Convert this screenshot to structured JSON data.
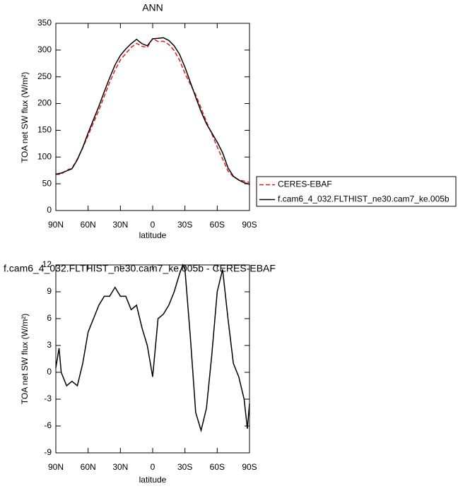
{
  "chart_data": [
    {
      "type": "line",
      "title": "ANN",
      "x_label": "latitude",
      "y_label": "TOA net SW flux (W/m²)",
      "x": [
        90,
        85,
        80,
        75,
        70,
        65,
        60,
        55,
        50,
        45,
        40,
        35,
        30,
        25,
        20,
        15,
        10,
        5,
        0,
        -5,
        -10,
        -15,
        -20,
        -25,
        -30,
        -35,
        -40,
        -45,
        -50,
        -55,
        -60,
        -65,
        -70,
        -75,
        -80,
        -85,
        -90
      ],
      "xlim": [
        90,
        -90
      ],
      "xticks": [
        {
          "value": 90,
          "label": "90N"
        },
        {
          "value": 60,
          "label": "60N"
        },
        {
          "value": 30,
          "label": "30N"
        },
        0,
        {
          "value": -30,
          "label": "30S"
        },
        {
          "value": -60,
          "label": "60S"
        },
        {
          "value": -90,
          "label": "90S"
        }
      ],
      "ylim": [
        0,
        350
      ],
      "yticks": [
        0,
        50,
        100,
        150,
        200,
        250,
        300,
        350
      ],
      "legend": "right",
      "series": [
        {
          "name": "CERES-EBAF",
          "color": "#e31a1c",
          "dashed": true,
          "values": [
            67.5,
            68,
            75.5,
            79,
            96.5,
            117,
            140.5,
            164,
            187.5,
            213.5,
            239.5,
            262.5,
            281.5,
            293.5,
            305,
            312.5,
            307,
            305,
            321.5,
            316,
            316.5,
            310.5,
            299,
            281,
            256.5,
            236,
            216.5,
            191.5,
            166,
            143,
            119,
            96.5,
            74,
            63,
            57.5,
            55,
            52.5
          ]
        },
        {
          "name": "f.cam6_4_032.FLTHIST_ne30.cam7_ke.005b",
          "color": "#000000",
          "dashed": false,
          "values": [
            68,
            70,
            74,
            78,
            95,
            118,
            145,
            170,
            195,
            222,
            248,
            272,
            290,
            302,
            312,
            320,
            312,
            308,
            321,
            322,
            323,
            318,
            308,
            292,
            268,
            240,
            212,
            185,
            162,
            145,
            128,
            108,
            80,
            64,
            57,
            52,
            49
          ]
        }
      ]
    },
    {
      "type": "line",
      "title": "f.cam6_4_032.FLTHIST_ne30.cam7_ke.005b - CERES-EBAF",
      "x_label": "latitude",
      "y_label": "TOA net SW flux (W/m²)",
      "x": [
        90,
        87,
        85,
        80,
        75,
        70,
        65,
        60,
        55,
        50,
        45,
        40,
        35,
        30,
        25,
        20,
        15,
        10,
        5,
        0,
        -5,
        -10,
        -15,
        -20,
        -25,
        -28,
        -30,
        -35,
        -40,
        -45,
        -50,
        -55,
        -60,
        -65,
        -70,
        -75,
        -80,
        -85,
        -88,
        -90
      ],
      "xlim": [
        90,
        -90
      ],
      "xticks": [
        {
          "value": 90,
          "label": "90N"
        },
        {
          "value": 60,
          "label": "60N"
        },
        {
          "value": 30,
          "label": "30N"
        },
        0,
        {
          "value": -30,
          "label": "30S"
        },
        {
          "value": -60,
          "label": "60S"
        },
        {
          "value": -90,
          "label": "90S"
        }
      ],
      "ylim": [
        -9,
        12
      ],
      "yticks": [
        -9,
        -6,
        -3,
        0,
        3,
        6,
        9,
        12
      ],
      "series": [
        {
          "color": "#000000",
          "dashed": false,
          "values": [
            0.5,
            2.7,
            0,
            -1.5,
            -1,
            -1.5,
            1,
            4.5,
            6,
            7.5,
            8.5,
            8.5,
            9.5,
            8.5,
            8.5,
            7,
            7.5,
            5,
            3,
            -0.5,
            6,
            6.5,
            7.5,
            9,
            11,
            12,
            11.5,
            4,
            -4.5,
            -6.5,
            -4,
            2,
            9,
            11.5,
            6,
            1,
            -0.5,
            -3,
            -6.3,
            -3.5
          ]
        }
      ]
    }
  ]
}
